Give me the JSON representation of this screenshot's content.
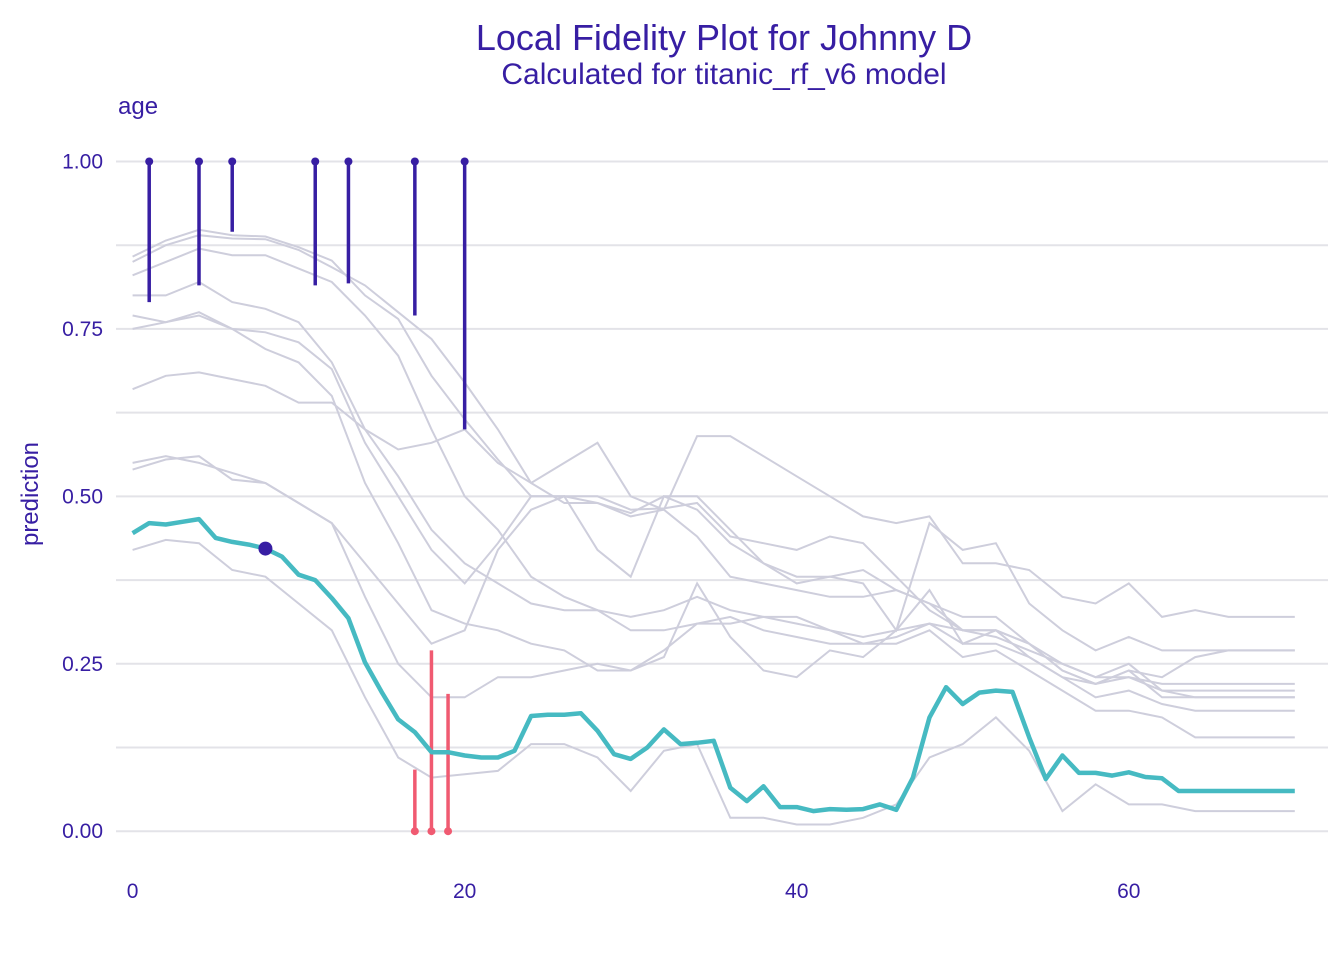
{
  "chart_data": {
    "type": "line",
    "title": "Local Fidelity Plot for Johnny D",
    "subtitle": "Calculated for titanic_rf_v6 model",
    "facet_label": "age",
    "xlabel": "",
    "ylabel": "prediction",
    "xlim": [
      -1,
      72
    ],
    "ylim": [
      -0.04,
      1.05
    ],
    "x_ticks": [
      0,
      20,
      40,
      60
    ],
    "x_tick_labels": [
      "0",
      "20",
      "40",
      "60"
    ],
    "y_ticks": [
      0,
      0.25,
      0.5,
      0.75,
      1
    ],
    "y_tick_labels": [
      "0.00",
      "0.25",
      "0.50",
      "0.75",
      "1.00"
    ],
    "grid": true,
    "colors": {
      "text": "#371ea3",
      "grid": "#e3e3e8",
      "profiles": "#cecedc",
      "observation_profile": "#46bac2",
      "point": "#371ea3",
      "residual_positive": "#371ea3",
      "residual_negative": "#f05a71"
    },
    "observation": {
      "x": 8,
      "y": 0.422
    },
    "observation_profile": {
      "x": [
        0,
        1,
        2,
        3,
        4,
        5,
        6,
        7,
        8,
        9,
        10,
        11,
        12,
        13,
        14,
        15,
        16,
        17,
        18,
        19,
        20,
        21,
        22,
        23,
        24,
        25,
        26,
        27,
        28,
        29,
        30,
        31,
        32,
        33,
        34,
        35,
        36,
        37,
        38,
        39,
        40,
        41,
        42,
        43,
        44,
        45,
        46,
        47,
        48,
        49,
        50,
        51,
        52,
        53,
        54,
        55,
        56,
        57,
        58,
        59,
        60,
        61,
        62,
        63,
        64,
        65,
        66,
        67,
        68,
        69,
        70
      ],
      "y": [
        0.445,
        0.46,
        0.458,
        0.462,
        0.466,
        0.438,
        0.432,
        0.428,
        0.422,
        0.41,
        0.383,
        0.375,
        0.348,
        0.318,
        0.252,
        0.208,
        0.167,
        0.148,
        0.118,
        0.118,
        0.113,
        0.11,
        0.11,
        0.12,
        0.172,
        0.174,
        0.174,
        0.176,
        0.15,
        0.115,
        0.108,
        0.125,
        0.152,
        0.13,
        0.132,
        0.135,
        0.065,
        0.045,
        0.067,
        0.036,
        0.036,
        0.03,
        0.033,
        0.032,
        0.033,
        0.04,
        0.032,
        0.08,
        0.17,
        0.215,
        0.19,
        0.207,
        0.21,
        0.208,
        0.14,
        0.078,
        0.113,
        0.087,
        0.087,
        0.083,
        0.088,
        0.081,
        0.079,
        0.06,
        0.06,
        0.06,
        0.06,
        0.06,
        0.06,
        0.06,
        0.06
      ]
    },
    "profiles": [
      {
        "x": [
          0,
          2,
          4,
          6,
          8,
          10,
          12,
          14,
          16,
          18,
          20,
          22,
          24,
          26,
          28,
          30,
          32,
          34,
          36,
          38,
          40,
          42,
          44,
          46,
          48,
          50,
          52,
          54,
          56,
          58,
          60,
          62,
          64,
          66,
          68,
          70
        ],
        "y": [
          0.858,
          0.882,
          0.898,
          0.89,
          0.888,
          0.872,
          0.852,
          0.8,
          0.765,
          0.68,
          0.615,
          0.555,
          0.5,
          0.5,
          0.5,
          0.48,
          0.482,
          0.49,
          0.44,
          0.43,
          0.42,
          0.44,
          0.43,
          0.38,
          0.33,
          0.3,
          0.3,
          0.28,
          0.24,
          0.22,
          0.24,
          0.2,
          0.2,
          0.2,
          0.2,
          0.2
        ]
      },
      {
        "x": [
          0,
          2,
          4,
          6,
          8,
          10,
          12,
          14,
          16,
          18,
          20,
          22,
          24,
          26,
          28,
          30,
          32,
          34,
          36,
          38,
          40,
          42,
          44,
          46,
          48,
          50,
          52,
          54,
          56,
          58,
          60,
          62,
          64,
          66,
          68,
          70
        ],
        "y": [
          0.85,
          0.875,
          0.89,
          0.885,
          0.884,
          0.868,
          0.842,
          0.815,
          0.775,
          0.735,
          0.67,
          0.6,
          0.52,
          0.49,
          0.49,
          0.475,
          0.5,
          0.5,
          0.45,
          0.4,
          0.38,
          0.38,
          0.39,
          0.36,
          0.34,
          0.32,
          0.32,
          0.28,
          0.25,
          0.23,
          0.25,
          0.21,
          0.21,
          0.21,
          0.21,
          0.21
        ]
      },
      {
        "x": [
          0,
          2,
          4,
          6,
          8,
          10,
          12,
          14,
          16,
          18,
          20,
          22,
          24,
          26,
          28,
          30,
          32,
          34,
          36,
          38,
          40,
          42,
          44,
          46,
          48,
          50,
          52,
          54,
          56,
          58,
          60,
          62,
          64,
          66,
          68,
          70
        ],
        "y": [
          0.83,
          0.85,
          0.87,
          0.86,
          0.86,
          0.84,
          0.82,
          0.77,
          0.71,
          0.6,
          0.5,
          0.45,
          0.38,
          0.35,
          0.33,
          0.3,
          0.3,
          0.31,
          0.32,
          0.3,
          0.29,
          0.28,
          0.28,
          0.29,
          0.31,
          0.3,
          0.3,
          0.28,
          0.24,
          0.22,
          0.23,
          0.22,
          0.22,
          0.22,
          0.22,
          0.22
        ]
      },
      {
        "x": [
          0,
          2,
          4,
          6,
          8,
          10,
          12,
          14,
          16,
          18,
          20,
          22,
          24,
          26,
          28,
          30,
          32,
          34,
          36,
          38,
          40,
          42,
          44,
          46,
          48,
          50,
          52,
          54,
          56,
          58,
          60,
          62,
          64,
          66,
          68,
          70
        ],
        "y": [
          0.8,
          0.8,
          0.82,
          0.79,
          0.78,
          0.76,
          0.7,
          0.6,
          0.53,
          0.45,
          0.4,
          0.37,
          0.34,
          0.33,
          0.33,
          0.32,
          0.33,
          0.35,
          0.33,
          0.32,
          0.32,
          0.3,
          0.29,
          0.3,
          0.31,
          0.28,
          0.28,
          0.26,
          0.23,
          0.2,
          0.21,
          0.19,
          0.18,
          0.18,
          0.18,
          0.18
        ]
      },
      {
        "x": [
          0,
          2,
          4,
          6,
          8,
          10,
          12,
          14,
          16,
          18,
          20,
          22,
          24,
          26,
          28,
          30,
          32,
          34,
          36,
          38,
          40,
          42,
          44,
          46,
          48,
          50,
          52,
          54,
          56,
          58,
          60,
          62,
          64,
          66,
          68,
          70
        ],
        "y": [
          0.77,
          0.76,
          0.775,
          0.75,
          0.745,
          0.73,
          0.69,
          0.58,
          0.5,
          0.42,
          0.37,
          0.43,
          0.5,
          0.5,
          0.49,
          0.47,
          0.48,
          0.44,
          0.38,
          0.37,
          0.36,
          0.35,
          0.35,
          0.36,
          0.34,
          0.3,
          0.29,
          0.27,
          0.25,
          0.23,
          0.23,
          0.21,
          0.2,
          0.2,
          0.2,
          0.2
        ]
      },
      {
        "x": [
          0,
          2,
          4,
          6,
          8,
          10,
          12,
          14,
          16,
          18,
          20,
          22,
          24,
          26,
          28,
          30,
          32,
          34,
          36,
          38,
          40,
          42,
          44,
          46,
          48,
          50,
          52,
          54,
          56,
          58,
          60,
          62,
          64,
          66,
          68,
          70
        ],
        "y": [
          0.75,
          0.76,
          0.77,
          0.75,
          0.72,
          0.7,
          0.65,
          0.52,
          0.43,
          0.33,
          0.31,
          0.3,
          0.28,
          0.27,
          0.24,
          0.24,
          0.27,
          0.31,
          0.31,
          0.32,
          0.31,
          0.3,
          0.28,
          0.28,
          0.3,
          0.26,
          0.27,
          0.24,
          0.21,
          0.18,
          0.18,
          0.17,
          0.14,
          0.14,
          0.14,
          0.14
        ]
      },
      {
        "x": [
          0,
          2,
          4,
          6,
          8,
          10,
          12,
          14,
          16,
          18,
          20,
          22,
          24,
          26,
          28,
          30,
          32,
          34,
          36,
          38,
          40,
          42,
          44,
          46,
          48,
          50,
          52,
          54,
          56,
          58,
          60,
          62,
          64,
          66,
          68,
          70
        ],
        "y": [
          0.66,
          0.68,
          0.685,
          0.675,
          0.665,
          0.64,
          0.64,
          0.6,
          0.57,
          0.58,
          0.6,
          0.55,
          0.52,
          0.55,
          0.58,
          0.5,
          0.48,
          0.59,
          0.59,
          0.56,
          0.53,
          0.5,
          0.47,
          0.46,
          0.47,
          0.4,
          0.4,
          0.39,
          0.35,
          0.34,
          0.37,
          0.32,
          0.33,
          0.32,
          0.32,
          0.32
        ]
      },
      {
        "x": [
          0,
          2,
          4,
          6,
          8,
          10,
          12,
          14,
          16,
          18,
          20,
          22,
          24,
          26,
          28,
          30,
          32,
          34,
          36,
          38,
          40,
          42,
          44,
          46,
          48,
          50,
          52,
          54,
          56,
          58,
          60,
          62,
          64,
          66,
          68,
          70
        ],
        "y": [
          0.55,
          0.56,
          0.55,
          0.535,
          0.52,
          0.49,
          0.46,
          0.4,
          0.34,
          0.28,
          0.3,
          0.42,
          0.48,
          0.5,
          0.42,
          0.38,
          0.5,
          0.48,
          0.43,
          0.4,
          0.37,
          0.38,
          0.37,
          0.3,
          0.46,
          0.42,
          0.43,
          0.34,
          0.3,
          0.27,
          0.29,
          0.27,
          0.27,
          0.27,
          0.27,
          0.27
        ]
      },
      {
        "x": [
          0,
          2,
          4,
          6,
          8,
          10,
          12,
          14,
          16,
          18,
          20,
          22,
          24,
          26,
          28,
          30,
          32,
          34,
          36,
          38,
          40,
          42,
          44,
          46,
          48,
          50,
          52,
          54,
          56,
          58,
          60,
          62,
          64,
          66,
          68,
          70
        ],
        "y": [
          0.54,
          0.555,
          0.56,
          0.525,
          0.52,
          0.49,
          0.46,
          0.35,
          0.25,
          0.2,
          0.2,
          0.23,
          0.23,
          0.24,
          0.25,
          0.24,
          0.26,
          0.37,
          0.29,
          0.24,
          0.23,
          0.27,
          0.26,
          0.3,
          0.36,
          0.28,
          0.3,
          0.26,
          0.23,
          0.22,
          0.24,
          0.23,
          0.26,
          0.27,
          0.27,
          0.27
        ]
      },
      {
        "x": [
          0,
          2,
          4,
          6,
          8,
          10,
          12,
          14,
          16,
          18,
          20,
          22,
          24,
          26,
          28,
          30,
          32,
          34,
          36,
          38,
          40,
          42,
          44,
          46,
          48,
          50,
          52,
          54,
          56,
          58,
          60,
          62,
          64,
          66,
          68,
          70
        ],
        "y": [
          0.42,
          0.435,
          0.43,
          0.39,
          0.38,
          0.34,
          0.3,
          0.2,
          0.11,
          0.08,
          0.085,
          0.09,
          0.13,
          0.13,
          0.11,
          0.06,
          0.12,
          0.13,
          0.02,
          0.02,
          0.01,
          0.01,
          0.02,
          0.04,
          0.11,
          0.13,
          0.17,
          0.12,
          0.03,
          0.07,
          0.04,
          0.04,
          0.03,
          0.03,
          0.03,
          0.03
        ]
      }
    ],
    "residuals": [
      {
        "x": 1,
        "from": 1.0,
        "to": 0.79,
        "sign": "positive"
      },
      {
        "x": 4,
        "from": 1.0,
        "to": 0.815,
        "sign": "positive"
      },
      {
        "x": 6,
        "from": 1.0,
        "to": 0.895,
        "sign": "positive"
      },
      {
        "x": 11,
        "from": 1.0,
        "to": 0.815,
        "sign": "positive"
      },
      {
        "x": 13,
        "from": 1.0,
        "to": 0.818,
        "sign": "positive"
      },
      {
        "x": 17,
        "from": 1.0,
        "to": 0.77,
        "sign": "positive"
      },
      {
        "x": 20,
        "from": 1.0,
        "to": 0.6,
        "sign": "positive"
      },
      {
        "x": 17,
        "from": 0.0,
        "to": 0.092,
        "sign": "negative"
      },
      {
        "x": 18,
        "from": 0.0,
        "to": 0.27,
        "sign": "negative"
      },
      {
        "x": 19,
        "from": 0.0,
        "to": 0.205,
        "sign": "negative"
      }
    ]
  }
}
